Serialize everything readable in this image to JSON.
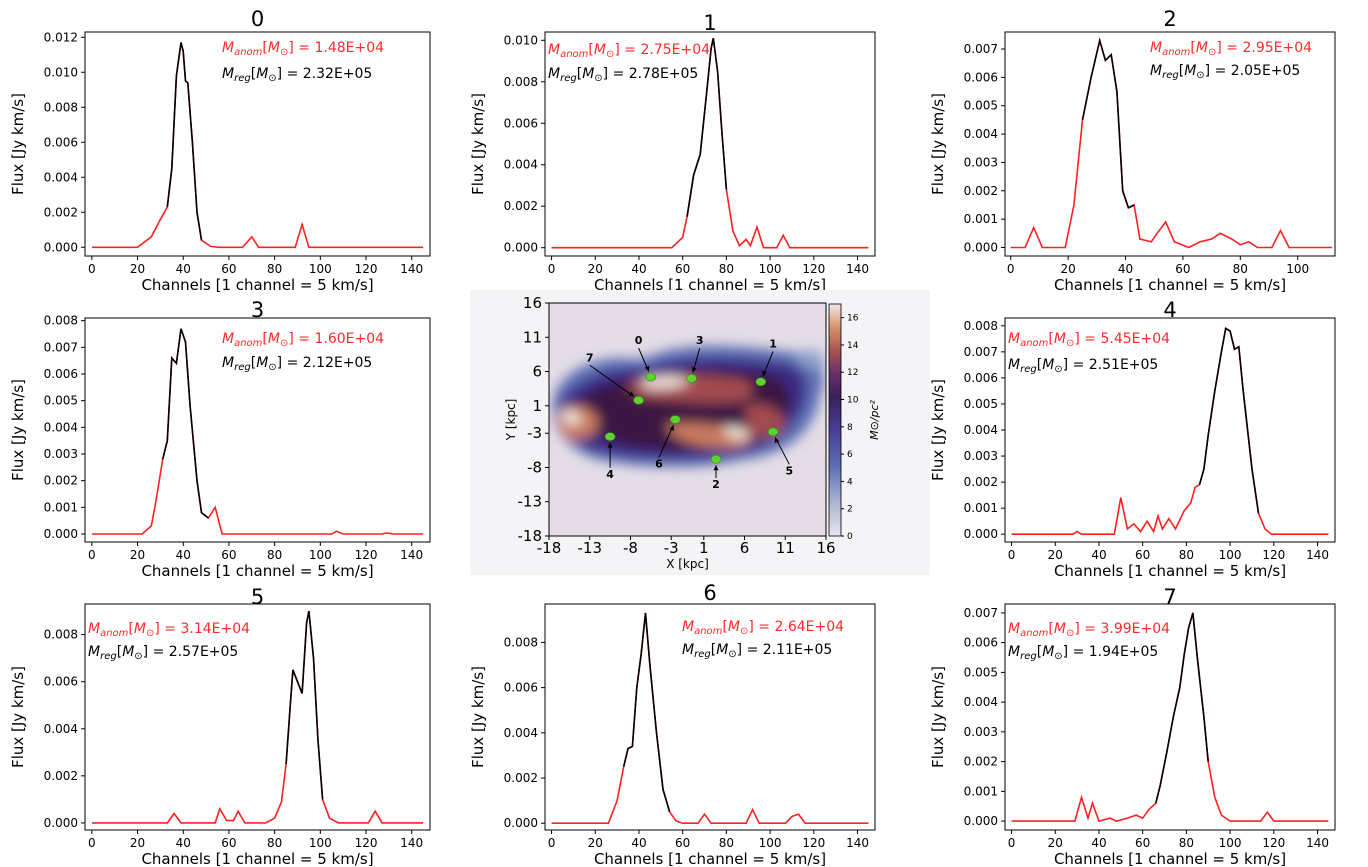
{
  "colors": {
    "anomalous": "#ff2020",
    "regular": "#000000"
  },
  "chart_data": [
    {
      "type": "line",
      "title": "0",
      "xlabel": "Channels [1 channel = 5 km/s]",
      "ylabel": "Flux [Jy km/s]",
      "xlim": [
        -3,
        148
      ],
      "ylim": [
        -0.0005,
        0.0123
      ],
      "xticks": [
        0,
        20,
        40,
        60,
        80,
        100,
        120,
        140
      ],
      "yticks": [
        0.0,
        0.002,
        0.004,
        0.006,
        0.008,
        0.01,
        0.012
      ],
      "ytick_labels": [
        "0.000",
        "0.002",
        "0.004",
        "0.006",
        "0.008",
        "0.010",
        "0.012"
      ],
      "annotation_anom": " = 1.48E+04",
      "annotation_reg": " = 2.32E+05",
      "points": [
        [
          0,
          0
        ],
        [
          20,
          0
        ],
        [
          26,
          0.0006
        ],
        [
          30,
          0.0016
        ],
        [
          33,
          0.0023
        ],
        [
          35,
          0.0045
        ],
        [
          37,
          0.0098
        ],
        [
          39,
          0.0117
        ],
        [
          40,
          0.0112
        ],
        [
          41,
          0.0095
        ],
        [
          42,
          0.0094
        ],
        [
          44,
          0.006
        ],
        [
          46,
          0.002
        ],
        [
          48,
          0.0004
        ],
        [
          52,
          5e-05
        ],
        [
          56,
          0
        ],
        [
          66,
          0
        ],
        [
          70,
          0.0006
        ],
        [
          73,
          0
        ],
        [
          89,
          0
        ],
        [
          92,
          0.0013
        ],
        [
          95,
          0
        ],
        [
          145,
          0
        ]
      ],
      "black_range": [
        31,
        49
      ]
    },
    {
      "type": "line",
      "title": "1",
      "xlabel": "Channels [1 channel = 5 km/s]",
      "ylabel": "Flux [Jy km/s]",
      "xlim": [
        -3,
        148
      ],
      "ylim": [
        -0.0004,
        0.0104
      ],
      "xticks": [
        0,
        20,
        40,
        60,
        80,
        100,
        120,
        140
      ],
      "yticks": [
        0.0,
        0.002,
        0.004,
        0.006,
        0.008,
        0.01
      ],
      "ytick_labels": [
        "0.000",
        "0.002",
        "0.004",
        "0.006",
        "0.008",
        "0.010"
      ],
      "annotation_anom": " = 2.75E+04",
      "annotation_reg": " = 2.78E+05",
      "points": [
        [
          0,
          0
        ],
        [
          55,
          0
        ],
        [
          60,
          0.0005
        ],
        [
          62,
          0.0015
        ],
        [
          65,
          0.0035
        ],
        [
          68,
          0.0045
        ],
        [
          71,
          0.0075
        ],
        [
          73,
          0.0096
        ],
        [
          74,
          0.0101
        ],
        [
          76,
          0.0085
        ],
        [
          78,
          0.0055
        ],
        [
          80,
          0.0028
        ],
        [
          83,
          0.0008
        ],
        [
          86,
          0.0001
        ],
        [
          89,
          0.0004
        ],
        [
          91,
          0.0001
        ],
        [
          94,
          0.001
        ],
        [
          97,
          0
        ],
        [
          103,
          0
        ],
        [
          106,
          0.0006
        ],
        [
          109,
          0
        ],
        [
          145,
          0
        ]
      ],
      "black_range": [
        62,
        82
      ]
    },
    {
      "type": "line",
      "title": "2",
      "xlabel": "Channels [1 channel = 5 km/s]",
      "ylabel": "Flux [Jy km/s]",
      "xlim": [
        -2,
        113
      ],
      "ylim": [
        -0.0003,
        0.0076
      ],
      "xticks": [
        0,
        20,
        40,
        60,
        80,
        100
      ],
      "yticks": [
        0.0,
        0.001,
        0.002,
        0.003,
        0.004,
        0.005,
        0.006,
        0.007
      ],
      "ytick_labels": [
        "0.000",
        "0.001",
        "0.002",
        "0.003",
        "0.004",
        "0.005",
        "0.006",
        "0.007"
      ],
      "annotation_anom": " = 2.95E+04",
      "annotation_reg": " = 2.05E+05",
      "points": [
        [
          0,
          0
        ],
        [
          5,
          0
        ],
        [
          8,
          0.0007
        ],
        [
          11,
          0
        ],
        [
          19,
          0
        ],
        [
          22,
          0.0015
        ],
        [
          25,
          0.0045
        ],
        [
          28,
          0.006
        ],
        [
          31,
          0.0073
        ],
        [
          33,
          0.0066
        ],
        [
          35,
          0.0068
        ],
        [
          37,
          0.0055
        ],
        [
          39,
          0.002
        ],
        [
          41,
          0.0014
        ],
        [
          43,
          0.0015
        ],
        [
          45,
          0.0003
        ],
        [
          49,
          0.0002
        ],
        [
          51,
          0.0005
        ],
        [
          54,
          0.0009
        ],
        [
          57,
          0.0002
        ],
        [
          62,
          0
        ],
        [
          66,
          0.0002
        ],
        [
          70,
          0.0003
        ],
        [
          73,
          0.0005
        ],
        [
          77,
          0.0003
        ],
        [
          80,
          0.0001
        ],
        [
          83,
          0.0002
        ],
        [
          86,
          0
        ],
        [
          91,
          0
        ],
        [
          94,
          0.0006
        ],
        [
          97,
          0
        ],
        [
          112,
          0
        ]
      ],
      "black_range": [
        24,
        44
      ]
    },
    {
      "type": "line",
      "title": "3",
      "xlabel": "Channels [1 channel = 5 km/s]",
      "ylabel": "Flux [Jy km/s]",
      "xlim": [
        -3,
        148
      ],
      "ylim": [
        -0.0003,
        0.0081
      ],
      "xticks": [
        0,
        20,
        40,
        60,
        80,
        100,
        120,
        140
      ],
      "yticks": [
        0.0,
        0.001,
        0.002,
        0.003,
        0.004,
        0.005,
        0.006,
        0.007,
        0.008
      ],
      "ytick_labels": [
        "0.000",
        "0.001",
        "0.002",
        "0.003",
        "0.004",
        "0.005",
        "0.006",
        "0.007",
        "0.008"
      ],
      "annotation_anom": " = 1.60E+04",
      "annotation_reg": " = 2.12E+05",
      "points": [
        [
          0,
          0
        ],
        [
          22,
          0
        ],
        [
          26,
          0.0003
        ],
        [
          28,
          0.0012
        ],
        [
          31,
          0.0028
        ],
        [
          33,
          0.0035
        ],
        [
          35,
          0.0066
        ],
        [
          37,
          0.0064
        ],
        [
          39,
          0.0077
        ],
        [
          41,
          0.0072
        ],
        [
          43,
          0.0048
        ],
        [
          46,
          0.002
        ],
        [
          48,
          0.0008
        ],
        [
          51,
          0.0006
        ],
        [
          54,
          0.001
        ],
        [
          57,
          0
        ],
        [
          105,
          0
        ],
        [
          107,
          0.0001
        ],
        [
          110,
          0
        ],
        [
          127,
          0
        ],
        [
          129,
          4e-05
        ],
        [
          132,
          0
        ],
        [
          145,
          0
        ]
      ],
      "black_range": [
        29,
        52
      ]
    },
    {
      "type": "line",
      "title": "4",
      "xlabel": "Channels [1 channel = 5 km/s]",
      "ylabel": "Flux [Jy km/s]",
      "xlim": [
        -3,
        148
      ],
      "ylim": [
        -0.0003,
        0.0083
      ],
      "xticks": [
        0,
        20,
        40,
        60,
        80,
        100,
        120,
        140
      ],
      "yticks": [
        0.0,
        0.001,
        0.002,
        0.003,
        0.004,
        0.005,
        0.006,
        0.007,
        0.008
      ],
      "ytick_labels": [
        "0.000",
        "0.001",
        "0.002",
        "0.003",
        "0.004",
        "0.005",
        "0.006",
        "0.007",
        "0.008"
      ],
      "annotation_anom": " = 5.45E+04",
      "annotation_reg": " = 2.51E+05",
      "points": [
        [
          0,
          0
        ],
        [
          28,
          0
        ],
        [
          30,
          0.0001
        ],
        [
          32,
          0
        ],
        [
          47,
          0
        ],
        [
          50,
          0.0014
        ],
        [
          53,
          0.0002
        ],
        [
          56,
          0.0004
        ],
        [
          59,
          0.0001
        ],
        [
          62,
          0.0005
        ],
        [
          65,
          0.0001
        ],
        [
          67,
          0.0007
        ],
        [
          69,
          0.0002
        ],
        [
          72,
          0.0006
        ],
        [
          75,
          0.0002
        ],
        [
          79,
          0.0009
        ],
        [
          82,
          0.0012
        ],
        [
          84,
          0.0018
        ],
        [
          86,
          0.0019
        ],
        [
          88,
          0.0025
        ],
        [
          90,
          0.0038
        ],
        [
          93,
          0.0055
        ],
        [
          96,
          0.007
        ],
        [
          98,
          0.0079
        ],
        [
          100,
          0.0078
        ],
        [
          102,
          0.0071
        ],
        [
          104,
          0.0072
        ],
        [
          106,
          0.0055
        ],
        [
          110,
          0.0025
        ],
        [
          113,
          0.0008
        ],
        [
          116,
          0.0002
        ],
        [
          119,
          0
        ],
        [
          145,
          0
        ]
      ],
      "black_range": [
        86,
        113
      ]
    },
    {
      "type": "line",
      "title": "5",
      "xlabel": "Channels [1 channel = 5 km/s]",
      "ylabel": "Flux [Jy km/s]",
      "xlim": [
        -3,
        148
      ],
      "ylim": [
        -0.0003,
        0.0093
      ],
      "xticks": [
        0,
        20,
        40,
        60,
        80,
        100,
        120,
        140
      ],
      "yticks": [
        0.0,
        0.002,
        0.004,
        0.006,
        0.008
      ],
      "ytick_labels": [
        "0.000",
        "0.002",
        "0.004",
        "0.006",
        "0.008"
      ],
      "annotation_anom": " = 3.14E+04",
      "annotation_reg": " = 2.57E+05",
      "points": [
        [
          0,
          0
        ],
        [
          33,
          0
        ],
        [
          36,
          0.0004
        ],
        [
          39,
          0
        ],
        [
          54,
          0
        ],
        [
          56,
          0.0006
        ],
        [
          59,
          0.0001
        ],
        [
          62,
          0.0001
        ],
        [
          64,
          0.0005
        ],
        [
          67,
          0
        ],
        [
          76,
          0
        ],
        [
          80,
          0.0002
        ],
        [
          83,
          0.0009
        ],
        [
          85,
          0.0025
        ],
        [
          87,
          0.0052
        ],
        [
          88,
          0.0065
        ],
        [
          90,
          0.006
        ],
        [
          92,
          0.0055
        ],
        [
          94,
          0.0085
        ],
        [
          95,
          0.009
        ],
        [
          97,
          0.007
        ],
        [
          99,
          0.0035
        ],
        [
          101,
          0.001
        ],
        [
          104,
          0.0002
        ],
        [
          108,
          0
        ],
        [
          121,
          0
        ],
        [
          124,
          0.0005
        ],
        [
          127,
          0
        ],
        [
          145,
          0
        ]
      ],
      "black_range": [
        84,
        101
      ]
    },
    {
      "type": "line",
      "title": "6",
      "xlabel": "Channels [1 channel = 5 km/s]",
      "ylabel": "Flux [Jy km/s]",
      "xlim": [
        -3,
        148
      ],
      "ylim": [
        -0.0003,
        0.0097
      ],
      "xticks": [
        0,
        20,
        40,
        60,
        80,
        100,
        120,
        140
      ],
      "yticks": [
        0.0,
        0.002,
        0.004,
        0.006,
        0.008
      ],
      "ytick_labels": [
        "0.000",
        "0.002",
        "0.004",
        "0.006",
        "0.008"
      ],
      "annotation_anom": " = 2.64E+04",
      "annotation_reg": " = 2.11E+05",
      "points": [
        [
          0,
          0
        ],
        [
          26,
          0
        ],
        [
          30,
          0.001
        ],
        [
          33,
          0.0025
        ],
        [
          35,
          0.0033
        ],
        [
          37,
          0.0034
        ],
        [
          39,
          0.006
        ],
        [
          41,
          0.0075
        ],
        [
          43,
          0.0093
        ],
        [
          45,
          0.007
        ],
        [
          48,
          0.004
        ],
        [
          51,
          0.0015
        ],
        [
          54,
          0.0005
        ],
        [
          57,
          0.0001
        ],
        [
          60,
          0
        ],
        [
          67,
          0
        ],
        [
          70,
          0.0004
        ],
        [
          73,
          0
        ],
        [
          89,
          0
        ],
        [
          92,
          0.0006
        ],
        [
          95,
          0
        ],
        [
          107,
          0
        ],
        [
          110,
          0.0003
        ],
        [
          113,
          0.0004
        ],
        [
          116,
          0
        ],
        [
          145,
          0
        ]
      ],
      "black_range": [
        31,
        55
      ]
    },
    {
      "type": "line",
      "title": "7",
      "xlabel": "Channels [1 channel = 5 km/s]",
      "ylabel": "Flux [Jy km/s]",
      "xlim": [
        -3,
        148
      ],
      "ylim": [
        -0.0003,
        0.0073
      ],
      "xticks": [
        0,
        20,
        40,
        60,
        80,
        100,
        120,
        140
      ],
      "yticks": [
        0.0,
        0.001,
        0.002,
        0.003,
        0.004,
        0.005,
        0.006,
        0.007
      ],
      "ytick_labels": [
        "0.000",
        "0.001",
        "0.002",
        "0.003",
        "0.004",
        "0.005",
        "0.006",
        "0.007"
      ],
      "annotation_anom": " = 3.99E+04",
      "annotation_reg": " = 1.94E+05",
      "points": [
        [
          0,
          0
        ],
        [
          29,
          0
        ],
        [
          32,
          0.0008
        ],
        [
          35,
          0.0001
        ],
        [
          37,
          0.0006
        ],
        [
          40,
          0
        ],
        [
          45,
          0.0001
        ],
        [
          48,
          0
        ],
        [
          53,
          0.0001
        ],
        [
          57,
          0.0002
        ],
        [
          60,
          0.0001
        ],
        [
          63,
          0.0004
        ],
        [
          66,
          0.0006
        ],
        [
          68,
          0.0012
        ],
        [
          71,
          0.0023
        ],
        [
          74,
          0.0035
        ],
        [
          77,
          0.0045
        ],
        [
          79,
          0.0056
        ],
        [
          81,
          0.0065
        ],
        [
          83,
          0.007
        ],
        [
          85,
          0.0055
        ],
        [
          88,
          0.0035
        ],
        [
          90,
          0.002
        ],
        [
          93,
          0.0008
        ],
        [
          96,
          0.0002
        ],
        [
          100,
          0
        ],
        [
          114,
          0
        ],
        [
          117,
          0.0003
        ],
        [
          120,
          0
        ],
        [
          145,
          0
        ]
      ],
      "black_range": [
        66,
        92
      ]
    },
    {
      "type": "heatmap",
      "xlabel": "X [kpc]",
      "ylabel": "Y [kpc]",
      "xticks": [
        -18,
        -13,
        -8,
        -3,
        1,
        6,
        11,
        16
      ],
      "xtick_labels": [
        "-18",
        "-13",
        "-8",
        "-3",
        "1",
        "6",
        "11",
        "16"
      ],
      "yticks": [
        16,
        11,
        6,
        1,
        -3,
        -8,
        -13,
        -18
      ],
      "ytick_labels": [
        "16",
        "11",
        "6",
        "1",
        "-3",
        "-8",
        "-13",
        "-18"
      ],
      "colorbar_label": "M⊙/pc²",
      "colorbar_ticks": [
        0,
        2,
        4,
        6,
        8,
        10,
        12,
        14,
        16
      ],
      "colorbar_range": [
        0,
        17
      ],
      "markers": [
        {
          "label": "0",
          "x": -5.5,
          "y": 5.2,
          "tx": -7,
          "ty": 10
        },
        {
          "label": "1",
          "x": 8,
          "y": 4.5,
          "tx": 9.5,
          "ty": 9.5
        },
        {
          "label": "2",
          "x": 2.5,
          "y": -6.8,
          "tx": 2.5,
          "ty": -11
        },
        {
          "label": "3",
          "x": -0.5,
          "y": 5.0,
          "tx": 0.5,
          "ty": 10
        },
        {
          "label": "4",
          "x": -10.5,
          "y": -3.5,
          "tx": -10.5,
          "ty": -9.5
        },
        {
          "label": "5",
          "x": 9.5,
          "y": -2.8,
          "tx": 11.5,
          "ty": -9
        },
        {
          "label": "6",
          "x": -2.5,
          "y": -1.0,
          "tx": -4.5,
          "ty": -8
        },
        {
          "label": "7",
          "x": -7,
          "y": 1.8,
          "tx": -13,
          "ty": 7.5
        }
      ]
    }
  ]
}
